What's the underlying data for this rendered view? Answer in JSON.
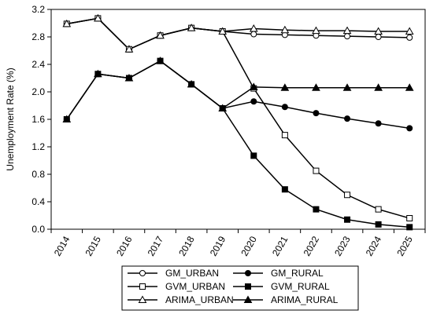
{
  "chart_data": {
    "type": "line",
    "title": "",
    "xlabel": "",
    "ylabel": "Unemployment Rate (%)",
    "ylim": [
      0.0,
      3.2
    ],
    "yticks": [
      "0.0",
      "0.4",
      "0.8",
      "1.2",
      "1.6",
      "2.0",
      "2.4",
      "2.8",
      "3.2"
    ],
    "categories": [
      "2014",
      "2015",
      "2016",
      "2017",
      "2018",
      "2019",
      "2020",
      "2021",
      "2022",
      "2023",
      "2024",
      "2025"
    ],
    "grid": false,
    "legend_position": "bottom",
    "series": [
      {
        "name": "GM_URBAN",
        "marker": "open-circle",
        "values": [
          2.99,
          3.07,
          2.62,
          2.82,
          2.93,
          2.88,
          2.84,
          2.83,
          2.82,
          2.81,
          2.8,
          2.79
        ]
      },
      {
        "name": "GM_RURAL",
        "marker": "filled-circle",
        "values": [
          1.6,
          2.26,
          2.2,
          2.45,
          2.11,
          1.76,
          1.86,
          1.78,
          1.69,
          1.61,
          1.54,
          1.47
        ]
      },
      {
        "name": "GVM_URBAN",
        "marker": "open-square",
        "values": [
          2.99,
          3.07,
          2.62,
          2.82,
          2.93,
          2.88,
          2.05,
          1.37,
          0.85,
          0.5,
          0.29,
          0.16
        ]
      },
      {
        "name": "GVM_RURAL",
        "marker": "filled-square",
        "values": [
          1.6,
          2.26,
          2.2,
          2.45,
          2.11,
          1.76,
          1.07,
          0.58,
          0.29,
          0.14,
          0.07,
          0.03
        ]
      },
      {
        "name": "ARIMA_URBAN",
        "marker": "open-triangle",
        "values": [
          2.99,
          3.07,
          2.62,
          2.82,
          2.93,
          2.88,
          2.92,
          2.9,
          2.89,
          2.89,
          2.88,
          2.88
        ]
      },
      {
        "name": "ARIMA_RURAL",
        "marker": "filled-triangle",
        "values": [
          1.6,
          2.26,
          2.2,
          2.45,
          2.11,
          1.76,
          2.07,
          2.06,
          2.06,
          2.06,
          2.06,
          2.06
        ]
      }
    ],
    "legend_order": [
      "GM_URBAN",
      "GM_RURAL",
      "GVM_URBAN",
      "GVM_RURAL",
      "ARIMA_URBAN",
      "ARIMA_RURAL"
    ],
    "colors": {
      "line": "#000000",
      "background": "#ffffff"
    }
  }
}
